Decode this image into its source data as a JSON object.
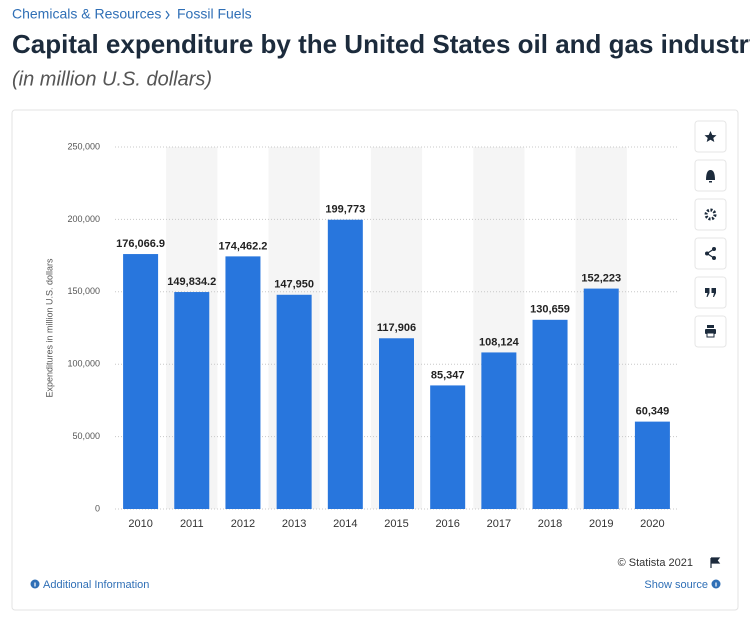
{
  "breadcrumb": [
    "Chemicals & Resources",
    "Fossil Fuels"
  ],
  "title": "Capital expenditure by the United States oil and gas industry f",
  "subtitle": "(in million U.S. dollars)",
  "chart_data": {
    "type": "bar",
    "y_label": "Expenditures in million U.S. dollars",
    "categories": [
      "2010",
      "2011",
      "2012",
      "2013",
      "2014",
      "2015",
      "2016",
      "2017",
      "2018",
      "2019",
      "2020"
    ],
    "values": [
      176066.9,
      149834.2,
      174462.2,
      147950,
      199773,
      117906,
      85347,
      108124,
      130659,
      152223,
      60349
    ],
    "value_labels": [
      "176,066.9",
      "149,834.2",
      "174,462.2",
      "147,950",
      "199,773",
      "117,906",
      "85,347",
      "108,124",
      "130,659",
      "152,223",
      "60,349"
    ],
    "color": "#2876dd",
    "ylim": [
      0,
      250000
    ],
    "yticks": [
      0,
      {
        "value": 50000,
        "label": "50,000"
      },
      {
        "value": 100000,
        "label": "100,000"
      },
      {
        "value": 150000,
        "label": "150,000"
      },
      {
        "value": 200000,
        "label": "200,000"
      },
      {
        "value": 250000,
        "label": "250,000"
      }
    ],
    "grid": true
  },
  "footer": {
    "copyright": "© Statista 2021",
    "additional_info": "Additional Information",
    "show_source": "Show source"
  }
}
